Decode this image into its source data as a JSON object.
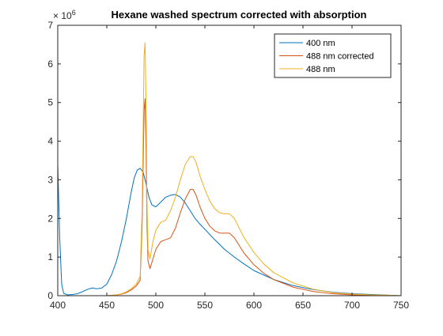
{
  "chart_data": {
    "type": "line",
    "title": "Hexane washed spectrum corrected with absorption",
    "xlabel": "",
    "ylabel": "",
    "y_multiplier_base": "× 10",
    "y_multiplier_exponent": "6",
    "xlim": [
      400,
      750
    ],
    "ylim": [
      0,
      7
    ],
    "xticks": [
      400,
      450,
      500,
      550,
      600,
      650,
      700,
      750
    ],
    "yticks": [
      0,
      1,
      2,
      3,
      4,
      5,
      6,
      7
    ],
    "grid": false,
    "legend_position": "top-right",
    "colors": {
      "s400": "#0072BD",
      "s488corr": "#D95319",
      "s488": "#EDB120"
    },
    "series": [
      {
        "name": "400 nm",
        "color": "#0072BD",
        "x": [
          400,
          402,
          404,
          406,
          410,
          415,
          420,
          425,
          430,
          435,
          440,
          445,
          450,
          455,
          460,
          465,
          470,
          475,
          478,
          481,
          484,
          487,
          490,
          493,
          496,
          500,
          505,
          510,
          515,
          520,
          525,
          530,
          535,
          540,
          545,
          550,
          560,
          570,
          580,
          590,
          600,
          620,
          640,
          660,
          680,
          700,
          720,
          740,
          750
        ],
        "y": [
          3.4,
          1.5,
          0.3,
          0.06,
          0.02,
          0.03,
          0.05,
          0.1,
          0.16,
          0.2,
          0.18,
          0.2,
          0.3,
          0.55,
          0.9,
          1.4,
          2.0,
          2.7,
          3.05,
          3.25,
          3.3,
          3.2,
          2.9,
          2.55,
          2.35,
          2.3,
          2.42,
          2.55,
          2.6,
          2.62,
          2.55,
          2.4,
          2.2,
          2.0,
          1.85,
          1.72,
          1.45,
          1.2,
          1.0,
          0.82,
          0.65,
          0.42,
          0.26,
          0.16,
          0.09,
          0.05,
          0.03,
          0.01,
          0.0
        ]
      },
      {
        "name": "488 nm corrected",
        "color": "#D95319",
        "x": [
          400,
          420,
          440,
          450,
          460,
          465,
          470,
          475,
          480,
          484,
          486,
          488,
          489,
          490,
          491,
          492,
          494,
          497,
          500,
          505,
          510,
          515,
          520,
          525,
          530,
          535,
          538,
          541,
          545,
          550,
          555,
          560,
          565,
          570,
          575,
          580,
          585,
          590,
          600,
          610,
          620,
          640,
          660,
          680,
          700,
          720,
          740,
          750
        ],
        "y": [
          0,
          0,
          0,
          0.0,
          0.02,
          0.04,
          0.08,
          0.15,
          0.25,
          0.4,
          1.8,
          4.8,
          5.1,
          3.8,
          1.8,
          0.9,
          0.7,
          0.95,
          1.2,
          1.4,
          1.45,
          1.5,
          1.75,
          2.15,
          2.5,
          2.75,
          2.75,
          2.6,
          2.3,
          2.0,
          1.8,
          1.68,
          1.62,
          1.62,
          1.62,
          1.5,
          1.3,
          1.1,
          0.8,
          0.58,
          0.42,
          0.22,
          0.11,
          0.05,
          0.02,
          0.01,
          0.0,
          0.0
        ]
      },
      {
        "name": "488 nm",
        "color": "#EDB120",
        "x": [
          400,
          420,
          440,
          450,
          460,
          465,
          470,
          475,
          480,
          484,
          486,
          488,
          489,
          490,
          491,
          492,
          494,
          497,
          500,
          505,
          510,
          515,
          520,
          525,
          530,
          535,
          538,
          541,
          545,
          550,
          555,
          560,
          565,
          570,
          575,
          580,
          585,
          590,
          600,
          610,
          620,
          640,
          660,
          680,
          700,
          720,
          740,
          750
        ],
        "y": [
          0,
          0,
          0,
          0.0,
          0.02,
          0.05,
          0.1,
          0.18,
          0.3,
          0.5,
          2.2,
          6.2,
          6.55,
          5.0,
          2.4,
          1.2,
          0.95,
          1.4,
          1.7,
          1.9,
          1.95,
          2.2,
          2.55,
          3.0,
          3.4,
          3.6,
          3.6,
          3.45,
          3.1,
          2.75,
          2.45,
          2.25,
          2.15,
          2.12,
          2.12,
          2.0,
          1.75,
          1.5,
          1.12,
          0.82,
          0.6,
          0.33,
          0.17,
          0.08,
          0.04,
          0.02,
          0.01,
          0.0
        ]
      }
    ]
  }
}
